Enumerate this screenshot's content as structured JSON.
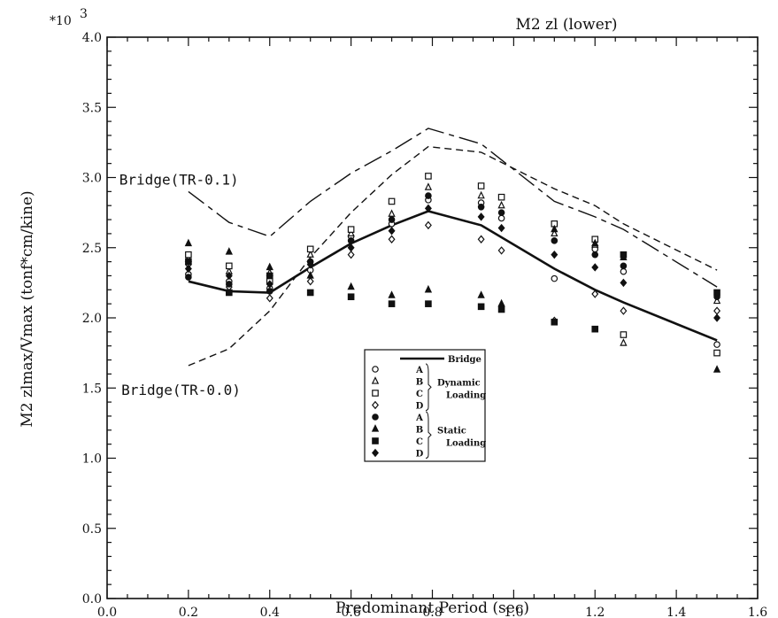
{
  "chart_data": {
    "type": "scatter",
    "title": "M2 zl (lower)",
    "scale_label": "*10",
    "scale_exponent": "3",
    "xlabel": "Predominant  Period   (sec)",
    "ylabel": "M2 zlmax/Vmax (tonf*cm/kine)",
    "xlim": [
      0.0,
      1.6
    ],
    "ylim": [
      0.0,
      4.0
    ],
    "x_ticks": [
      "0.0",
      "0.2",
      "0.4",
      "0.6",
      "0.8",
      "1.0",
      "1.2",
      "1.4",
      "1.6"
    ],
    "y_ticks": [
      "0.0",
      "0.5",
      "1.0",
      "1.5",
      "2.0",
      "2.5",
      "3.0",
      "3.5",
      "4.0"
    ],
    "x_tick_values": [
      0.0,
      0.2,
      0.4,
      0.6,
      0.8,
      1.0,
      1.2,
      1.4,
      1.6
    ],
    "y_tick_values": [
      0.0,
      0.5,
      1.0,
      1.5,
      2.0,
      2.5,
      3.0,
      3.5,
      4.0
    ],
    "annotations": [
      {
        "text": "Bridge(TR-0.1)",
        "x": 0.03,
        "y": 2.95
      },
      {
        "text": "Bridge(TR-0.0)",
        "x": 0.035,
        "y": 1.45
      }
    ],
    "lines": [
      {
        "name": "Bridge",
        "style": "solid",
        "x": [
          0.2,
          0.3,
          0.4,
          0.5,
          0.6,
          0.7,
          0.79,
          0.92,
          1.1,
          1.2,
          1.27,
          1.5
        ],
        "y": [
          2.26,
          2.19,
          2.18,
          2.36,
          2.53,
          2.66,
          2.76,
          2.66,
          2.35,
          2.2,
          2.11,
          1.84
        ]
      },
      {
        "name": "TR-0.1",
        "style": "longdash",
        "x": [
          0.2,
          0.3,
          0.4,
          0.5,
          0.6,
          0.7,
          0.79,
          0.92,
          1.1,
          1.2,
          1.27,
          1.5
        ],
        "y": [
          2.9,
          2.68,
          2.58,
          2.83,
          3.03,
          3.19,
          3.35,
          3.24,
          2.83,
          2.72,
          2.63,
          2.22
        ]
      },
      {
        "name": "TR-0.0",
        "style": "shortdash",
        "x": [
          0.2,
          0.3,
          0.4,
          0.5,
          0.6,
          0.7,
          0.79,
          0.92,
          1.1,
          1.2,
          1.27,
          1.5
        ],
        "y": [
          1.66,
          1.78,
          2.05,
          2.43,
          2.75,
          3.02,
          3.22,
          3.18,
          2.92,
          2.8,
          2.67,
          2.34
        ]
      }
    ],
    "series": [
      {
        "name": "A",
        "group": "Dynamic Loading",
        "marker": "circle-open",
        "x": [
          0.2,
          0.3,
          0.4,
          0.5,
          0.6,
          0.7,
          0.79,
          0.92,
          0.97,
          1.1,
          1.2,
          1.27,
          1.5
        ],
        "y": [
          2.31,
          2.26,
          2.21,
          2.34,
          2.58,
          2.67,
          2.84,
          2.82,
          2.71,
          2.28,
          2.49,
          2.33,
          1.81
        ]
      },
      {
        "name": "B",
        "group": "Dynamic Loading",
        "marker": "triangle-open",
        "x": [
          0.2,
          0.3,
          0.4,
          0.5,
          0.6,
          0.7,
          0.79,
          0.92,
          0.97,
          1.1,
          1.2,
          1.27,
          1.5
        ],
        "y": [
          2.42,
          2.33,
          2.32,
          2.45,
          2.6,
          2.74,
          2.93,
          2.87,
          2.8,
          2.6,
          2.52,
          1.82,
          2.12
        ]
      },
      {
        "name": "C",
        "group": "Dynamic Loading",
        "marker": "square-open",
        "x": [
          0.2,
          0.3,
          0.4,
          0.5,
          0.6,
          0.7,
          0.79,
          0.92,
          0.97,
          1.1,
          1.2,
          1.27,
          1.5
        ],
        "y": [
          2.45,
          2.37,
          2.26,
          2.49,
          2.63,
          2.83,
          3.01,
          2.94,
          2.86,
          2.67,
          2.56,
          1.88,
          1.75
        ]
      },
      {
        "name": "D",
        "group": "Dynamic Loading",
        "marker": "diamond-open",
        "x": [
          0.2,
          0.3,
          0.4,
          0.5,
          0.6,
          0.7,
          0.79,
          0.92,
          0.97,
          1.1,
          1.2,
          1.27,
          1.5
        ],
        "y": [
          2.38,
          2.22,
          2.14,
          2.26,
          2.45,
          2.56,
          2.66,
          2.56,
          2.48,
          1.98,
          2.17,
          2.05,
          2.05
        ]
      },
      {
        "name": "A",
        "group": "Static Loading",
        "marker": "circle-filled",
        "x": [
          0.2,
          0.3,
          0.4,
          0.5,
          0.6,
          0.7,
          0.79,
          0.92,
          0.97,
          1.1,
          1.2,
          1.27,
          1.5
        ],
        "y": [
          2.29,
          2.24,
          2.19,
          2.4,
          2.55,
          2.7,
          2.87,
          2.79,
          2.75,
          2.55,
          2.45,
          2.37,
          2.15
        ]
      },
      {
        "name": "B",
        "group": "Static Loading",
        "marker": "triangle-filled",
        "x": [
          0.2,
          0.3,
          0.4,
          0.5,
          0.6,
          0.7,
          0.79,
          0.92,
          0.97,
          1.1,
          1.2,
          1.27,
          1.5
        ],
        "y": [
          2.53,
          2.47,
          2.36,
          2.3,
          2.22,
          2.16,
          2.2,
          2.16,
          2.1,
          2.63,
          2.53,
          2.43,
          1.63
        ]
      },
      {
        "name": "C",
        "group": "Static Loading",
        "marker": "square-filled",
        "x": [
          0.2,
          0.3,
          0.4,
          0.5,
          0.6,
          0.7,
          0.79,
          0.92,
          0.97,
          1.1,
          1.2,
          1.27,
          1.5
        ],
        "y": [
          2.4,
          2.18,
          2.3,
          2.18,
          2.15,
          2.1,
          2.1,
          2.08,
          2.06,
          1.97,
          1.92,
          2.45,
          2.18
        ]
      },
      {
        "name": "D",
        "group": "Static Loading",
        "marker": "diamond-filled",
        "x": [
          0.2,
          0.3,
          0.4,
          0.5,
          0.6,
          0.7,
          0.79,
          0.92,
          0.97,
          1.1,
          1.2,
          1.27,
          1.5
        ],
        "y": [
          2.35,
          2.3,
          2.24,
          2.38,
          2.5,
          2.62,
          2.78,
          2.72,
          2.64,
          2.45,
          2.36,
          2.25,
          2.0
        ]
      }
    ],
    "legend": {
      "title": "Bridge",
      "placement": "center",
      "groups": [
        {
          "label": "Dynamic",
          "sub": "Loading",
          "letters": [
            "A",
            "B",
            "C",
            "D"
          ],
          "markers": [
            "circle-open",
            "triangle-open",
            "square-open",
            "diamond-open"
          ]
        },
        {
          "label": "Static",
          "sub": "Loading",
          "letters": [
            "A",
            "B",
            "C",
            "D"
          ],
          "markers": [
            "circle-filled",
            "triangle-filled",
            "square-filled",
            "diamond-filled"
          ]
        }
      ]
    },
    "grid": false,
    "colors": {
      "ink": "#111111",
      "background": "#ffffff"
    }
  }
}
